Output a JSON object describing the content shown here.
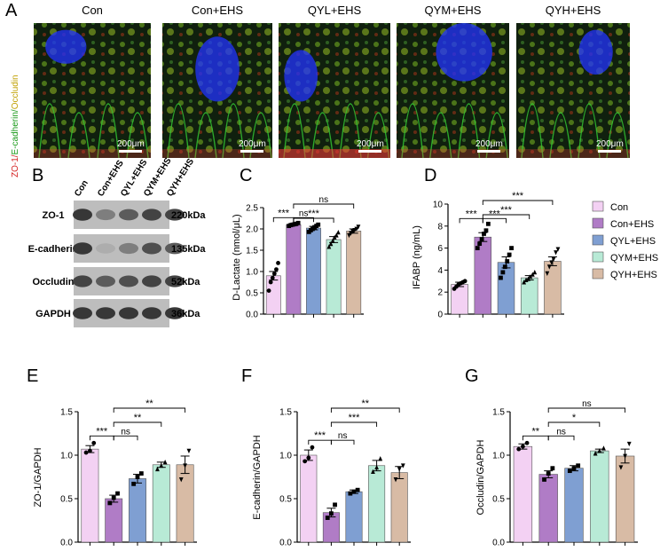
{
  "panel_labels": {
    "A": "A",
    "B": "B",
    "C": "C",
    "D": "D",
    "E": "E",
    "F": "F",
    "G": "G"
  },
  "micrographs": {
    "titles": [
      "Con",
      "Con+EHS",
      "QYL+EHS",
      "QYM+EHS",
      "QYH+EHS"
    ],
    "side_label": {
      "zo1": "ZO-1/",
      "ecad": "E-cadherin/",
      "occl": "Occludin"
    },
    "scale_bar": "200μm",
    "colors": {
      "zo1": "#ff3b3b",
      "ecad": "#33cc33",
      "occl": "#e6c200",
      "nucleus": "#2233ff",
      "background": "#0c1a0c"
    }
  },
  "western_blot": {
    "lanes": [
      "Con",
      "Con+EHS",
      "QYL+EHS",
      "QYM+EHS",
      "QYH+EHS"
    ],
    "rows": [
      {
        "protein": "ZO-1",
        "size": "220kDa"
      },
      {
        "protein": "E-cadherin",
        "size": "135kDa"
      },
      {
        "protein": "Occludin",
        "size": "52kDa"
      },
      {
        "protein": "GAPDH",
        "size": "36kDa"
      }
    ],
    "band_intensity": [
      [
        0.85,
        0.55,
        0.7,
        0.8,
        0.8
      ],
      [
        0.85,
        0.35,
        0.55,
        0.75,
        0.7
      ],
      [
        0.8,
        0.7,
        0.75,
        0.8,
        0.8
      ],
      [
        0.85,
        0.85,
        0.85,
        0.85,
        0.85
      ]
    ]
  },
  "legend": {
    "entries": [
      "Con",
      "Con+EHS",
      "QYL+EHS",
      "QYM+EHS",
      "QYH+EHS"
    ],
    "colors": [
      "#f3d1f3",
      "#b07cc6",
      "#7f9fd2",
      "#b8ead6",
      "#d8bba5"
    ]
  },
  "chart_data": [
    {
      "id": "C",
      "type": "bar",
      "categories": [
        "Con",
        "Con+EHS",
        "QYL+EHS",
        "QYM+EHS",
        "QYH+EHS"
      ],
      "values": [
        0.9,
        2.1,
        2.02,
        1.75,
        1.95
      ],
      "errors": [
        0.1,
        0.02,
        0.04,
        0.07,
        0.05
      ],
      "points": [
        [
          0.55,
          0.75,
          0.85,
          0.95,
          1.05,
          1.2
        ],
        [
          2.07,
          2.09,
          2.1,
          2.11,
          2.12,
          2.14
        ],
        [
          1.93,
          1.97,
          2.0,
          2.04,
          2.07,
          2.1
        ],
        [
          1.58,
          1.65,
          1.72,
          1.8,
          1.85,
          1.92
        ],
        [
          1.85,
          1.9,
          1.94,
          1.97,
          2.0,
          2.05
        ]
      ],
      "markers": [
        "circle",
        "square",
        "square",
        "triangle",
        "tri-down"
      ],
      "ylabel": "D-Lactate (nmol/μL)",
      "ylim": [
        0,
        2.5
      ],
      "yticks": [
        "0.0",
        "0.5",
        "1.0",
        "1.5",
        "2.0",
        "2.5"
      ],
      "sig": [
        {
          "a": 0,
          "b": 1,
          "label": "***",
          "level": 0
        },
        {
          "a": 1,
          "b": 2,
          "label": "ns",
          "level": 0
        },
        {
          "a": 1,
          "b": 3,
          "label": "***",
          "level": 1
        },
        {
          "a": 1,
          "b": 4,
          "label": "ns",
          "level": 2
        }
      ]
    },
    {
      "id": "D",
      "type": "bar",
      "categories": [
        "Con",
        "Con+EHS",
        "QYL+EHS",
        "QYM+EHS",
        "QYH+EHS"
      ],
      "values": [
        2.7,
        7.0,
        4.7,
        3.3,
        4.8
      ],
      "errors": [
        0.2,
        0.4,
        0.5,
        0.2,
        0.4
      ],
      "points": [
        [
          2.3,
          2.5,
          2.7,
          2.8,
          2.9,
          3.0
        ],
        [
          6.0,
          6.4,
          6.8,
          7.3,
          7.6,
          8.2
        ],
        [
          3.3,
          3.8,
          4.3,
          4.8,
          5.4,
          6.0
        ],
        [
          2.9,
          3.1,
          3.2,
          3.4,
          3.6,
          3.8
        ],
        [
          3.7,
          4.3,
          4.7,
          5.0,
          5.6,
          5.9
        ]
      ],
      "markers": [
        "circle",
        "square",
        "square",
        "triangle",
        "tri-down"
      ],
      "ylabel": "IFABP (ng/mL)",
      "ylim": [
        0,
        10
      ],
      "yticks": [
        "0",
        "2",
        "4",
        "6",
        "8",
        "10"
      ],
      "sig": [
        {
          "a": 0,
          "b": 1,
          "label": "***",
          "level": 0
        },
        {
          "a": 1,
          "b": 2,
          "label": "***",
          "level": 0
        },
        {
          "a": 1,
          "b": 3,
          "label": "***",
          "level": 1
        },
        {
          "a": 1,
          "b": 4,
          "label": "***",
          "level": 2
        }
      ]
    },
    {
      "id": "E",
      "type": "bar",
      "categories": [
        "Con",
        "Con+EHS",
        "QYL+EHS",
        "QYM+EHS",
        "QYH+EHS"
      ],
      "values": [
        1.07,
        0.5,
        0.73,
        0.89,
        0.89
      ],
      "errors": [
        0.04,
        0.04,
        0.05,
        0.03,
        0.1
      ],
      "points": [
        [
          1.03,
          1.05,
          1.14
        ],
        [
          0.45,
          0.51,
          0.56
        ],
        [
          0.67,
          0.75,
          0.79
        ],
        [
          0.84,
          0.88,
          0.92
        ],
        [
          0.72,
          0.88,
          1.05
        ]
      ],
      "markers": [
        "circle",
        "square",
        "square",
        "triangle",
        "tri-down"
      ],
      "ylabel": "ZO-1/GAPDH",
      "ylim": [
        0,
        1.5
      ],
      "yticks": [
        "0.0",
        "0.5",
        "1.0",
        "1.5"
      ],
      "sig": [
        {
          "a": 0,
          "b": 1,
          "label": "***",
          "level": 0
        },
        {
          "a": 1,
          "b": 2,
          "label": "ns",
          "level": 0
        },
        {
          "a": 1,
          "b": 3,
          "label": "**",
          "level": 1
        },
        {
          "a": 1,
          "b": 4,
          "label": "**",
          "level": 2
        }
      ]
    },
    {
      "id": "F",
      "type": "bar",
      "categories": [
        "Con",
        "Con+EHS",
        "QYL+EHS",
        "QYM+EHS",
        "QYH+EHS"
      ],
      "values": [
        1.0,
        0.34,
        0.58,
        0.88,
        0.8
      ],
      "errors": [
        0.06,
        0.05,
        0.02,
        0.06,
        0.07
      ],
      "points": [
        [
          0.93,
          0.97,
          1.09
        ],
        [
          0.28,
          0.33,
          0.43
        ],
        [
          0.56,
          0.58,
          0.6
        ],
        [
          0.81,
          0.86,
          0.96
        ],
        [
          0.72,
          0.84,
          0.88
        ]
      ],
      "markers": [
        "circle",
        "square",
        "square",
        "triangle",
        "tri-down"
      ],
      "ylabel": "E-cadherin/GAPDH",
      "ylim": [
        0,
        1.5
      ],
      "yticks": [
        "0.0",
        "0.5",
        "1.0",
        "1.5"
      ],
      "sig": [
        {
          "a": 0,
          "b": 1,
          "label": "***",
          "level": 0
        },
        {
          "a": 1,
          "b": 2,
          "label": "ns",
          "level": 0
        },
        {
          "a": 1,
          "b": 3,
          "label": "***",
          "level": 1
        },
        {
          "a": 1,
          "b": 4,
          "label": "**",
          "level": 2
        }
      ]
    },
    {
      "id": "G",
      "type": "bar",
      "categories": [
        "Con",
        "Con+EHS",
        "QYL+EHS",
        "QYM+EHS",
        "QYH+EHS"
      ],
      "values": [
        1.1,
        0.78,
        0.85,
        1.05,
        0.99
      ],
      "errors": [
        0.03,
        0.04,
        0.03,
        0.02,
        0.08
      ],
      "points": [
        [
          1.07,
          1.1,
          1.14
        ],
        [
          0.72,
          0.79,
          0.85
        ],
        [
          0.82,
          0.85,
          0.88
        ],
        [
          1.02,
          1.05,
          1.08
        ],
        [
          0.86,
          0.99,
          1.13
        ]
      ],
      "markers": [
        "circle",
        "square",
        "square",
        "triangle",
        "tri-down"
      ],
      "ylabel": "Occludin/GAPDH",
      "ylim": [
        0,
        1.5
      ],
      "yticks": [
        "0.0",
        "0.5",
        "1.0",
        "1.5"
      ],
      "sig": [
        {
          "a": 0,
          "b": 1,
          "label": "**",
          "level": 0
        },
        {
          "a": 1,
          "b": 2,
          "label": "ns",
          "level": 0
        },
        {
          "a": 1,
          "b": 3,
          "label": "*",
          "level": 1
        },
        {
          "a": 1,
          "b": 4,
          "label": "ns",
          "level": 2
        }
      ]
    }
  ]
}
